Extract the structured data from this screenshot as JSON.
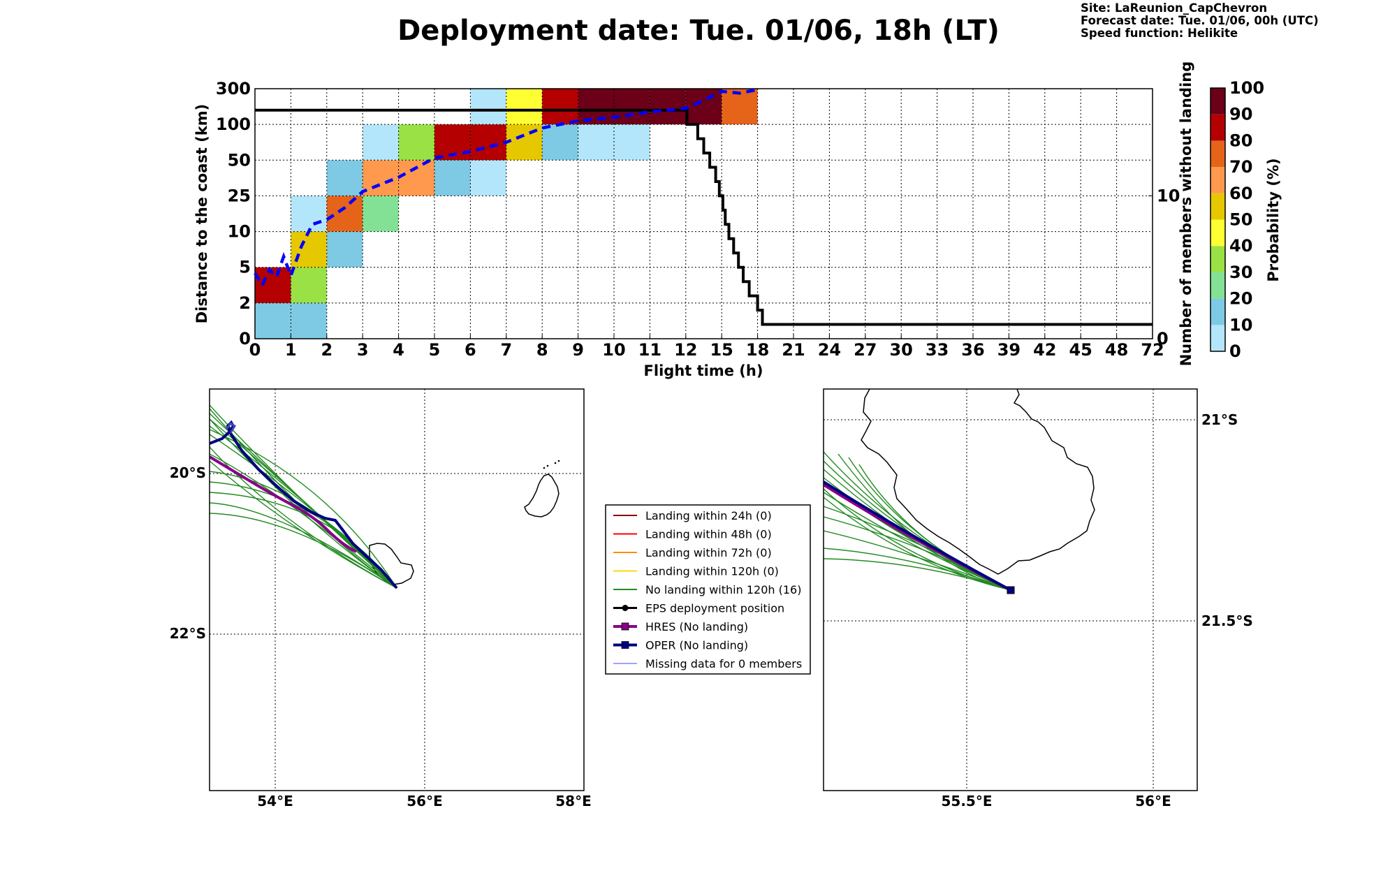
{
  "title": "Deployment date: Tue. 01/06, 18h (LT)",
  "info": {
    "site": "Site: LaReunion_CapChevron",
    "forecast": "Forecast date: Tue. 01/06, 00h (UTC)",
    "speed": "Speed function: Helikite"
  },
  "colors": {
    "p0": "#b3e6fa",
    "p10": "#7ecae4",
    "p20": "#82e195",
    "p30": "#99e145",
    "p40": "#ffff33",
    "p50": "#e6c800",
    "p60": "#ff994d",
    "p70": "#e6641a",
    "p80": "#b40000",
    "p90": "#6b0018",
    "mean": "#0000ff",
    "members_line": "#000000",
    "ens": "#228b22",
    "hres": "#880088",
    "oper": "#000080",
    "coast": "#000000"
  },
  "chart_data": [
    {
      "type": "heatmap",
      "xlabel": "Flight time (h)",
      "ylabel": "Distance to the coast (km)",
      "y2label": "Number of members without landing",
      "x_ticks": [
        "0",
        "1",
        "2",
        "3",
        "4",
        "5",
        "6",
        "7",
        "8",
        "9",
        "10",
        "11",
        "12",
        "15",
        "18",
        "21",
        "24",
        "27",
        "30",
        "33",
        "36",
        "39",
        "42",
        "45",
        "48",
        "72"
      ],
      "y_ticks": [
        "0",
        "2",
        "5",
        "10",
        "25",
        "50",
        "100",
        "300"
      ],
      "y2_ticks": [
        "0",
        "10"
      ],
      "y2_range": [
        0,
        17.5
      ],
      "colorbar": {
        "label": "Probability (%)",
        "ticks": [
          "0",
          "10",
          "20",
          "30",
          "40",
          "50",
          "60",
          "70",
          "80",
          "90",
          "100"
        ]
      },
      "cells": [
        {
          "t": "0-1",
          "dist": "0-2",
          "prob": 10
        },
        {
          "t": "1-2",
          "dist": "0-2",
          "prob": 10
        },
        {
          "t": "0-1",
          "dist": "2-5",
          "prob": 80
        },
        {
          "t": "1-2",
          "dist": "2-5",
          "prob": 30
        },
        {
          "t": "1-2",
          "dist": "5-10",
          "prob": 50
        },
        {
          "t": "1-2",
          "dist": "10-25",
          "prob": 0
        },
        {
          "t": "2-3",
          "dist": "5-10",
          "prob": 10
        },
        {
          "t": "2-3",
          "dist": "10-25",
          "prob": 70
        },
        {
          "t": "2-3",
          "dist": "25-50",
          "prob": 10
        },
        {
          "t": "3-4",
          "dist": "10-25",
          "prob": 20
        },
        {
          "t": "3-4",
          "dist": "25-50",
          "prob": 60
        },
        {
          "t": "3-4",
          "dist": "50-100",
          "prob": 0
        },
        {
          "t": "4-5",
          "dist": "25-50",
          "prob": 60
        },
        {
          "t": "4-5",
          "dist": "50-100",
          "prob": 30
        },
        {
          "t": "5-6",
          "dist": "25-50",
          "prob": 10
        },
        {
          "t": "5-6",
          "dist": "50-100",
          "prob": 80
        },
        {
          "t": "6-7",
          "dist": "25-50",
          "prob": 0
        },
        {
          "t": "6-7",
          "dist": "50-100",
          "prob": 80
        },
        {
          "t": "6-7",
          "dist": "100-300",
          "prob": 0
        },
        {
          "t": "7-8",
          "dist": "50-100",
          "prob": 50
        },
        {
          "t": "7-8",
          "dist": "100-300",
          "prob": 40
        },
        {
          "t": "8-9",
          "dist": "50-100",
          "prob": 10
        },
        {
          "t": "8-9",
          "dist": "100-300",
          "prob": 80
        },
        {
          "t": "9-10",
          "dist": "50-100",
          "prob": 0
        },
        {
          "t": "9-10",
          "dist": "100-300",
          "prob": 90
        },
        {
          "t": "10-11",
          "dist": "50-100",
          "prob": 0
        },
        {
          "t": "10-11",
          "dist": "100-300",
          "prob": 90
        },
        {
          "t": "11-12",
          "dist": "100-300",
          "prob": 90
        },
        {
          "t": "12-15",
          "dist": "100-300",
          "prob": 90
        },
        {
          "t": "15-18",
          "dist": "100-300",
          "prob": 70
        }
      ],
      "mean_distance_km": [
        {
          "t": 0,
          "d": 4.5
        },
        {
          "t": 0.2,
          "d": 3.5
        },
        {
          "t": 0.4,
          "d": 4.8
        },
        {
          "t": 0.6,
          "d": 4.2
        },
        {
          "t": 0.8,
          "d": 6.5
        },
        {
          "t": 1.0,
          "d": 4.3
        },
        {
          "t": 1.3,
          "d": 8
        },
        {
          "t": 1.6,
          "d": 13
        },
        {
          "t": 2.0,
          "d": 15
        },
        {
          "t": 2.5,
          "d": 20
        },
        {
          "t": 3.0,
          "d": 28
        },
        {
          "t": 4.0,
          "d": 38
        },
        {
          "t": 5.0,
          "d": 53
        },
        {
          "t": 6.0,
          "d": 62
        },
        {
          "t": 7.0,
          "d": 75
        },
        {
          "t": 8.0,
          "d": 95
        },
        {
          "t": 9.0,
          "d": 120
        },
        {
          "t": 10.0,
          "d": 140
        },
        {
          "t": 11.0,
          "d": 170
        },
        {
          "t": 12.0,
          "d": 190
        },
        {
          "t": 13.5,
          "d": 235
        },
        {
          "t": 15.0,
          "d": 285
        },
        {
          "t": 16.5,
          "d": 275
        },
        {
          "t": 18.0,
          "d": 295
        }
      ],
      "members_without_landing": [
        {
          "t": 0,
          "n": 16
        },
        {
          "t": 12.1,
          "n": 16
        },
        {
          "t": 12.1,
          "n": 15
        },
        {
          "t": 13.0,
          "n": 15
        },
        {
          "t": 13.0,
          "n": 14
        },
        {
          "t": 13.5,
          "n": 14
        },
        {
          "t": 13.5,
          "n": 13
        },
        {
          "t": 14.0,
          "n": 13
        },
        {
          "t": 14.0,
          "n": 12
        },
        {
          "t": 14.5,
          "n": 12
        },
        {
          "t": 14.5,
          "n": 11
        },
        {
          "t": 14.8,
          "n": 11
        },
        {
          "t": 14.8,
          "n": 10
        },
        {
          "t": 15.1,
          "n": 10
        },
        {
          "t": 15.1,
          "n": 9
        },
        {
          "t": 15.3,
          "n": 9
        },
        {
          "t": 15.3,
          "n": 8
        },
        {
          "t": 15.6,
          "n": 8
        },
        {
          "t": 15.6,
          "n": 7
        },
        {
          "t": 16.0,
          "n": 7
        },
        {
          "t": 16.0,
          "n": 6
        },
        {
          "t": 16.4,
          "n": 6
        },
        {
          "t": 16.4,
          "n": 5
        },
        {
          "t": 16.8,
          "n": 5
        },
        {
          "t": 16.8,
          "n": 4
        },
        {
          "t": 17.3,
          "n": 4
        },
        {
          "t": 17.3,
          "n": 3
        },
        {
          "t": 18.0,
          "n": 3
        },
        {
          "t": 18.0,
          "n": 2
        },
        {
          "t": 18.4,
          "n": 2
        },
        {
          "t": 18.4,
          "n": 1
        },
        {
          "t": 72,
          "n": 1
        }
      ]
    },
    {
      "type": "map",
      "name": "regional map",
      "x_ticks": [
        "54°E",
        "56°E",
        "58°E"
      ],
      "y_ticks": [
        "20°S",
        "22°S"
      ],
      "lon_range": [
        53.15,
        58.15
      ],
      "lat_range": [
        -19.15,
        -24.15
      ],
      "deployment_position": {
        "lon": 55.65,
        "lat": -21.48
      },
      "hres_track": [
        [
          53.1,
          -20.0
        ],
        [
          53.6,
          -20.25
        ],
        [
          54.2,
          -20.55
        ],
        [
          54.6,
          -20.8
        ],
        [
          55.0,
          -21.1
        ]
      ],
      "oper_track": [
        [
          53.15,
          -19.75
        ],
        [
          53.35,
          -19.7
        ],
        [
          53.45,
          -19.6
        ],
        [
          53.3,
          -19.5
        ],
        [
          53.55,
          -19.9
        ],
        [
          54.0,
          -20.3
        ],
        [
          54.5,
          -20.6
        ],
        [
          54.8,
          -20.75
        ],
        [
          55.05,
          -21.0
        ],
        [
          55.35,
          -21.3
        ],
        [
          55.65,
          -21.48
        ]
      ]
    },
    {
      "type": "map",
      "name": "zoomed map",
      "x_ticks": [
        "55.5°E",
        "56°E"
      ],
      "y_ticks": [
        "21°S",
        "21.5°S"
      ],
      "lon_range": [
        55.0,
        56.12
      ],
      "lat_range": [
        -20.93,
        -21.93
      ],
      "deployment_position": {
        "lon": 55.56,
        "lat": -21.42
      }
    }
  ],
  "legend": {
    "items": [
      {
        "label": "Landing within 24h (0)",
        "color": "#8b0000",
        "marker": "none",
        "width": 2
      },
      {
        "label": "Landing within 48h (0)",
        "color": "#ff0000",
        "marker": "none",
        "width": 2
      },
      {
        "label": "Landing within 72h (0)",
        "color": "#ff8c00",
        "marker": "none",
        "width": 2
      },
      {
        "label": "Landing within 120h (0)",
        "color": "#ffd700",
        "marker": "none",
        "width": 2
      },
      {
        "label": "No landing within 120h (16)",
        "color": "#228b22",
        "marker": "none",
        "width": 2
      },
      {
        "label": "EPS deployment position",
        "color": "#000000",
        "marker": "dot",
        "width": 3
      },
      {
        "label": "HRES (No landing)",
        "color": "#880088",
        "marker": "square",
        "width": 4
      },
      {
        "label": "OPER (No landing)",
        "color": "#000080",
        "marker": "square",
        "width": 4
      },
      {
        "label": "Missing data for 0 members",
        "color": "#4444ff",
        "marker": "none",
        "width": 1
      }
    ]
  }
}
